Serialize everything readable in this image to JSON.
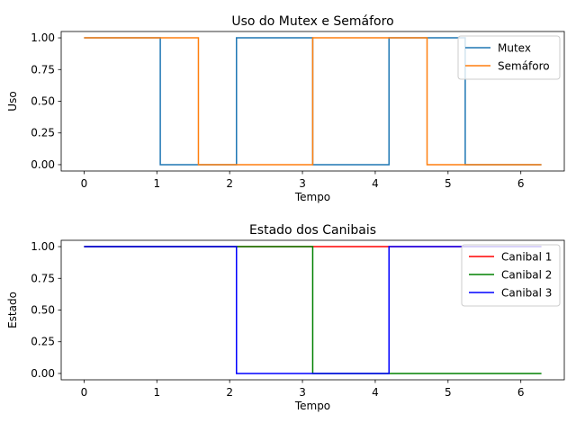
{
  "chart_data": [
    {
      "type": "line",
      "title": "Uso do Mutex e Semáforo",
      "xlabel": "Tempo",
      "ylabel": "Uso",
      "xlim": [
        -0.314,
        6.597
      ],
      "ylim": [
        -0.05,
        1.05
      ],
      "xticks": [
        0,
        1,
        2,
        3,
        4,
        5,
        6
      ],
      "xtick_labels": [
        "0",
        "1",
        "2",
        "3",
        "4",
        "5",
        "6"
      ],
      "yticks": [
        0,
        0.25,
        0.5,
        0.75,
        1.0
      ],
      "ytick_labels": [
        "0.00",
        "0.25",
        "0.50",
        "0.75",
        "1.00"
      ],
      "grid": false,
      "legend": "top-right",
      "series": [
        {
          "name": "Mutex",
          "color": "#1f77b4",
          "x": [
            0,
            1.047,
            1.047,
            2.094,
            2.094,
            3.141,
            3.141,
            4.189,
            4.189,
            5.236,
            5.236,
            6.283
          ],
          "y": [
            1,
            1,
            0,
            0,
            1,
            1,
            0,
            0,
            1,
            1,
            0,
            0
          ]
        },
        {
          "name": "Semáforo",
          "color": "#ff7f0e",
          "x": [
            0,
            1.571,
            1.571,
            3.141,
            3.141,
            4.712,
            4.712,
            6.283
          ],
          "y": [
            1,
            1,
            0,
            0,
            1,
            1,
            0,
            0
          ]
        }
      ]
    },
    {
      "type": "line",
      "title": "Estado dos Canibais",
      "xlabel": "Tempo",
      "ylabel": "Estado",
      "xlim": [
        -0.314,
        6.597
      ],
      "ylim": [
        -0.05,
        1.05
      ],
      "xticks": [
        0,
        1,
        2,
        3,
        4,
        5,
        6
      ],
      "xtick_labels": [
        "0",
        "1",
        "2",
        "3",
        "4",
        "5",
        "6"
      ],
      "yticks": [
        0,
        0.25,
        0.5,
        0.75,
        1.0
      ],
      "ytick_labels": [
        "0.00",
        "0.25",
        "0.50",
        "0.75",
        "1.00"
      ],
      "grid": false,
      "legend": "top-right",
      "series": [
        {
          "name": "Canibal 1",
          "color": "#ff0000",
          "x": [
            0,
            6.283
          ],
          "y": [
            1,
            1
          ]
        },
        {
          "name": "Canibal 2",
          "color": "#008000",
          "x": [
            0,
            3.141,
            3.141,
            6.283
          ],
          "y": [
            1,
            1,
            0,
            0
          ]
        },
        {
          "name": "Canibal 3",
          "color": "#0000ff",
          "x": [
            0,
            2.094,
            2.094,
            4.189,
            4.189,
            6.283
          ],
          "y": [
            1,
            1,
            0,
            0,
            1,
            1
          ]
        }
      ]
    }
  ]
}
